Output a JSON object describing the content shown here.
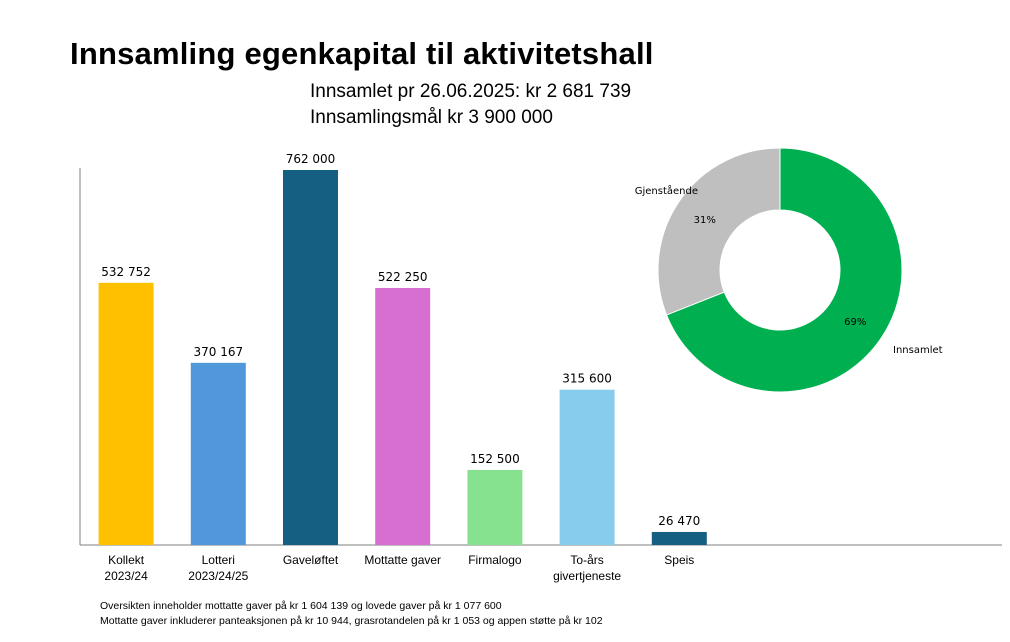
{
  "title": "Innsamling egenkapital til aktivitetshall",
  "subtitle_lines": [
    "Innsamlet pr 26.06.2025: kr 2 681 739",
    "Innsamlingsmål kr 3 900 000"
  ],
  "footnotes": [
    "Oversikten inneholder mottatte gaver på kr 1 604 139 og lovede gaver på kr 1 077 600",
    "Mottatte gaver inkluderer panteaksjonen på kr 10 944, grasrotandelen på kr 1 053 og appen støtte på kr 102"
  ],
  "chart_data": [
    {
      "type": "bar",
      "categories": [
        [
          "Kollekt",
          "2023/24"
        ],
        [
          "Lotteri",
          "2023/24/25"
        ],
        [
          "Gaveløftet"
        ],
        [
          "Mottatte gaver"
        ],
        [
          "Firmalogo"
        ],
        [
          "To-års",
          "givertjeneste"
        ],
        [
          "Speis"
        ]
      ],
      "values": [
        532752,
        370167,
        762000,
        522250,
        152500,
        315600,
        26470
      ],
      "value_labels": [
        "532 752",
        "370 167",
        "762 000",
        "522 250",
        "152 500",
        "315 600",
        "26 470"
      ],
      "colors": [
        "#FFC000",
        "#5197DB",
        "#155F82",
        "#D66FD0",
        "#87E290",
        "#87CCEC",
        "#155F82"
      ],
      "ylim": [
        0,
        762000
      ],
      "grid": false
    },
    {
      "type": "pie",
      "donut": true,
      "labels": [
        "Innsamlet",
        "Gjenstående"
      ],
      "values": [
        69,
        31
      ],
      "value_labels": [
        "69%",
        "31%"
      ],
      "colors": [
        "#00B050",
        "#BFBFBF"
      ]
    }
  ]
}
